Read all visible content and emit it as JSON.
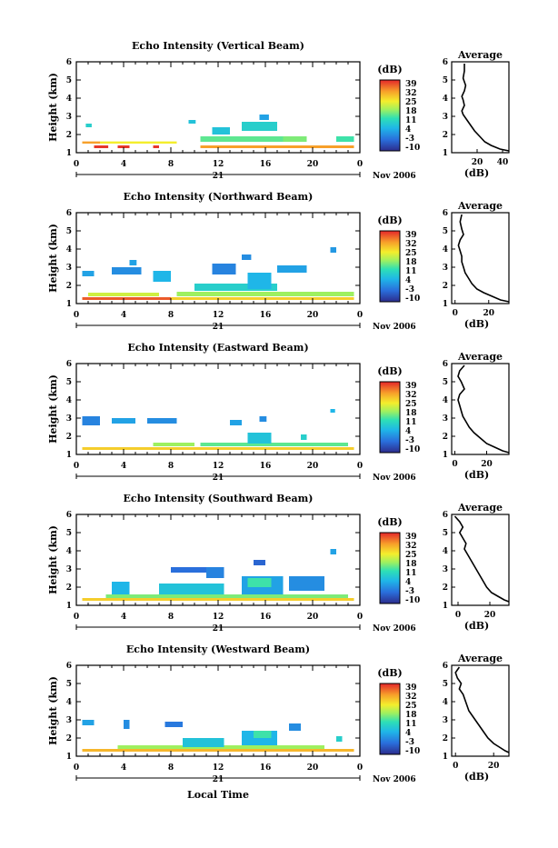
{
  "figure": {
    "xlabel": "Local Time"
  },
  "chart_data": [
    {
      "type": "heatmap",
      "title": "Echo Intensity (Vertical Beam)",
      "ylabel": "Height (km)",
      "xticks": [
        "0",
        "4",
        "8",
        "12",
        "16",
        "20",
        "0"
      ],
      "xlim": [
        0,
        24
      ],
      "date_label": "21",
      "date_suffix": "Nov 2006",
      "yticks": [
        "1",
        "2",
        "3",
        "4",
        "5",
        "6"
      ],
      "ylim": [
        1,
        6
      ],
      "colorbar": {
        "label": "(dB)",
        "ticks": [
          "39",
          "32",
          "25",
          "18",
          "11",
          "4",
          "-3",
          "-10"
        ]
      },
      "profile": {
        "title": "Average",
        "xlabel": "(dB)",
        "xticks": [
          "20",
          "40"
        ],
        "xlim": [
          0,
          45
        ],
        "x": [
          10,
          10,
          9,
          11,
          10,
          8,
          9,
          10,
          8,
          9,
          12,
          15,
          18,
          22,
          26,
          31,
          38,
          45
        ],
        "y": [
          5.9,
          5.5,
          5.1,
          4.7,
          4.4,
          4.1,
          3.9,
          3.6,
          3.3,
          3.1,
          2.8,
          2.5,
          2.2,
          1.9,
          1.6,
          1.4,
          1.2,
          1.1
        ]
      },
      "heat_cells": [
        {
          "x": 0.5,
          "y": 1.5,
          "w": 1.5,
          "h": 0.12,
          "v": 32
        },
        {
          "x": 2.0,
          "y": 1.5,
          "w": 6.5,
          "h": 0.12,
          "v": 25
        },
        {
          "x": 1.5,
          "y": 1.25,
          "w": 1.2,
          "h": 0.15,
          "v": 38
        },
        {
          "x": 3.5,
          "y": 1.25,
          "w": 1.0,
          "h": 0.15,
          "v": 38
        },
        {
          "x": 6.5,
          "y": 1.25,
          "w": 0.5,
          "h": 0.15,
          "v": 38
        },
        {
          "x": 10.5,
          "y": 1.25,
          "w": 13.0,
          "h": 0.15,
          "v": 32
        },
        {
          "x": 10.5,
          "y": 1.6,
          "w": 8.5,
          "h": 0.3,
          "v": 14
        },
        {
          "x": 11.5,
          "y": 2.0,
          "w": 1.5,
          "h": 0.4,
          "v": 6
        },
        {
          "x": 14.0,
          "y": 2.2,
          "w": 3.0,
          "h": 0.5,
          "v": 8
        },
        {
          "x": 15.5,
          "y": 2.8,
          "w": 0.8,
          "h": 0.3,
          "v": 2
        },
        {
          "x": 17.5,
          "y": 1.6,
          "w": 2.0,
          "h": 0.3,
          "v": 16
        },
        {
          "x": 22.0,
          "y": 1.6,
          "w": 1.5,
          "h": 0.3,
          "v": 12
        },
        {
          "x": 0.8,
          "y": 2.4,
          "w": 0.5,
          "h": 0.2,
          "v": 8
        },
        {
          "x": 9.5,
          "y": 2.6,
          "w": 0.6,
          "h": 0.2,
          "v": 6
        }
      ]
    },
    {
      "type": "heatmap",
      "title": "Echo Intensity (Northward Beam)",
      "ylabel": "Height (km)",
      "xticks": [
        "0",
        "4",
        "8",
        "12",
        "16",
        "20",
        "0"
      ],
      "xlim": [
        0,
        24
      ],
      "date_label": "21",
      "date_suffix": "Nov 2006",
      "yticks": [
        "1",
        "2",
        "3",
        "4",
        "5",
        "6"
      ],
      "ylim": [
        1,
        6
      ],
      "colorbar": {
        "label": "(dB)",
        "ticks": [
          "39",
          "32",
          "25",
          "18",
          "11",
          "4",
          "-3",
          "-10"
        ]
      },
      "profile": {
        "title": "Average",
        "xlabel": "(dB)",
        "xticks": [
          "0",
          "20"
        ],
        "xlim": [
          -2,
          32
        ],
        "x": [
          4,
          3,
          4,
          5,
          3,
          2,
          3,
          4,
          4,
          5,
          6,
          8,
          10,
          13,
          17,
          22,
          27,
          32
        ],
        "y": [
          5.9,
          5.5,
          5.1,
          4.8,
          4.5,
          4.2,
          3.9,
          3.6,
          3.3,
          3.0,
          2.7,
          2.4,
          2.1,
          1.8,
          1.6,
          1.4,
          1.2,
          1.1
        ]
      },
      "heat_cells": [
        {
          "x": 0.5,
          "y": 1.2,
          "w": 7.5,
          "h": 0.15,
          "v": 36
        },
        {
          "x": 8.0,
          "y": 1.2,
          "w": 15.5,
          "h": 0.15,
          "v": 28
        },
        {
          "x": 1.0,
          "y": 1.4,
          "w": 6.0,
          "h": 0.2,
          "v": 22
        },
        {
          "x": 8.5,
          "y": 1.4,
          "w": 15.0,
          "h": 0.25,
          "v": 18
        },
        {
          "x": 10.0,
          "y": 1.7,
          "w": 7.0,
          "h": 0.4,
          "v": 8
        },
        {
          "x": 14.5,
          "y": 1.8,
          "w": 2.0,
          "h": 0.9,
          "v": 4
        },
        {
          "x": 0.5,
          "y": 2.5,
          "w": 1.0,
          "h": 0.3,
          "v": 2
        },
        {
          "x": 3.0,
          "y": 2.6,
          "w": 2.5,
          "h": 0.4,
          "v": 0
        },
        {
          "x": 6.5,
          "y": 2.2,
          "w": 1.5,
          "h": 0.6,
          "v": 4
        },
        {
          "x": 11.5,
          "y": 2.6,
          "w": 2.0,
          "h": 0.6,
          "v": -1
        },
        {
          "x": 17.0,
          "y": 2.7,
          "w": 2.5,
          "h": 0.4,
          "v": 2
        },
        {
          "x": 21.5,
          "y": 3.8,
          "w": 0.5,
          "h": 0.3,
          "v": 1
        },
        {
          "x": 4.5,
          "y": 3.1,
          "w": 0.6,
          "h": 0.3,
          "v": 2
        },
        {
          "x": 14.0,
          "y": 3.4,
          "w": 0.8,
          "h": 0.3,
          "v": 0
        }
      ]
    },
    {
      "type": "heatmap",
      "title": "Echo Intensity (Eastward Beam)",
      "ylabel": "Height (km)",
      "xticks": [
        "0",
        "4",
        "8",
        "12",
        "16",
        "20",
        "0"
      ],
      "xlim": [
        0,
        24
      ],
      "date_label": "21",
      "date_suffix": "Nov 2006",
      "yticks": [
        "1",
        "2",
        "3",
        "4",
        "5",
        "6"
      ],
      "ylim": [
        1,
        6
      ],
      "colorbar": {
        "label": "(dB)",
        "ticks": [
          "39",
          "32",
          "25",
          "18",
          "11",
          "4",
          "-3",
          "-10"
        ]
      },
      "profile": {
        "title": "Average",
        "xlabel": "(dB)",
        "xticks": [
          "0",
          "20"
        ],
        "xlim": [
          -2,
          34
        ],
        "x": [
          6,
          3,
          2,
          4,
          6,
          3,
          2,
          3,
          4,
          5,
          7,
          9,
          12,
          16,
          20,
          25,
          30,
          34
        ],
        "y": [
          5.9,
          5.6,
          5.3,
          5.0,
          4.6,
          4.3,
          4.0,
          3.7,
          3.4,
          3.1,
          2.8,
          2.5,
          2.2,
          1.9,
          1.6,
          1.4,
          1.2,
          1.1
        ]
      },
      "heat_cells": [
        {
          "x": 0.5,
          "y": 1.25,
          "w": 23.0,
          "h": 0.15,
          "v": 28
        },
        {
          "x": 6.5,
          "y": 1.45,
          "w": 3.5,
          "h": 0.2,
          "v": 18
        },
        {
          "x": 10.5,
          "y": 1.45,
          "w": 12.5,
          "h": 0.2,
          "v": 14
        },
        {
          "x": 14.5,
          "y": 1.6,
          "w": 2.0,
          "h": 0.6,
          "v": 6
        },
        {
          "x": 0.5,
          "y": 2.6,
          "w": 1.5,
          "h": 0.5,
          "v": -1
        },
        {
          "x": 3.0,
          "y": 2.7,
          "w": 2.0,
          "h": 0.3,
          "v": 2
        },
        {
          "x": 6.0,
          "y": 2.7,
          "w": 2.5,
          "h": 0.3,
          "v": 0
        },
        {
          "x": 13.0,
          "y": 2.6,
          "w": 1.0,
          "h": 0.3,
          "v": 2
        },
        {
          "x": 15.5,
          "y": 2.8,
          "w": 0.6,
          "h": 0.3,
          "v": 0
        },
        {
          "x": 21.5,
          "y": 3.3,
          "w": 0.4,
          "h": 0.2,
          "v": 4
        },
        {
          "x": 19.0,
          "y": 1.8,
          "w": 0.5,
          "h": 0.3,
          "v": 8
        }
      ]
    },
    {
      "type": "heatmap",
      "title": "Echo Intensity (Southward Beam)",
      "ylabel": "Height (km)",
      "xticks": [
        "0",
        "4",
        "8",
        "12",
        "16",
        "20",
        "0"
      ],
      "xlim": [
        0,
        24
      ],
      "date_label": "21",
      "date_suffix": "Nov 2006",
      "yticks": [
        "1",
        "2",
        "3",
        "4",
        "5",
        "6"
      ],
      "ylim": [
        1,
        6
      ],
      "colorbar": {
        "label": "(dB)",
        "ticks": [
          "39",
          "32",
          "25",
          "18",
          "11",
          "4",
          "-3",
          "-10"
        ]
      },
      "profile": {
        "title": "Average",
        "xlabel": "(dB)",
        "xticks": [
          "0",
          "20"
        ],
        "xlim": [
          -4,
          32
        ],
        "x": [
          -2,
          1,
          3,
          1,
          3,
          5,
          4,
          6,
          8,
          10,
          12,
          14,
          16,
          18,
          21,
          25,
          29,
          32
        ],
        "y": [
          5.9,
          5.6,
          5.3,
          5.0,
          4.7,
          4.4,
          4.1,
          3.8,
          3.5,
          3.2,
          2.9,
          2.6,
          2.3,
          2.0,
          1.7,
          1.5,
          1.3,
          1.2
        ]
      },
      "heat_cells": [
        {
          "x": 0.5,
          "y": 1.25,
          "w": 23.0,
          "h": 0.15,
          "v": 28
        },
        {
          "x": 2.5,
          "y": 1.4,
          "w": 20.5,
          "h": 0.2,
          "v": 16
        },
        {
          "x": 7.0,
          "y": 1.6,
          "w": 5.5,
          "h": 0.6,
          "v": 6
        },
        {
          "x": 14.0,
          "y": 1.6,
          "w": 3.5,
          "h": 1.0,
          "v": 2
        },
        {
          "x": 14.5,
          "y": 2.0,
          "w": 2.0,
          "h": 0.5,
          "v": 12
        },
        {
          "x": 3.0,
          "y": 1.6,
          "w": 1.5,
          "h": 0.7,
          "v": 4
        },
        {
          "x": 8.0,
          "y": 2.8,
          "w": 3.0,
          "h": 0.3,
          "v": -3
        },
        {
          "x": 11.0,
          "y": 2.5,
          "w": 1.5,
          "h": 0.6,
          "v": -1
        },
        {
          "x": 18.0,
          "y": 1.8,
          "w": 3.0,
          "h": 0.8,
          "v": 0
        },
        {
          "x": 15.0,
          "y": 3.2,
          "w": 1.0,
          "h": 0.3,
          "v": -4
        },
        {
          "x": 21.5,
          "y": 3.8,
          "w": 0.5,
          "h": 0.3,
          "v": 2
        }
      ]
    },
    {
      "type": "heatmap",
      "title": "Echo Intensity (Westward Beam)",
      "ylabel": "Height (km)",
      "xticks": [
        "0",
        "4",
        "8",
        "12",
        "16",
        "20",
        "0"
      ],
      "xlim": [
        0,
        24
      ],
      "date_label": "21",
      "date_suffix": "Nov 2006",
      "yticks": [
        "1",
        "2",
        "3",
        "4",
        "5",
        "6"
      ],
      "ylim": [
        1,
        6
      ],
      "colorbar": {
        "label": "(dB)",
        "ticks": [
          "39",
          "32",
          "25",
          "18",
          "11",
          "4",
          "-3",
          "-10"
        ]
      },
      "profile": {
        "title": "Average",
        "xlabel": "(dB)",
        "xticks": [
          "0",
          "20"
        ],
        "xlim": [
          -2,
          28
        ],
        "x": [
          2,
          0,
          1,
          3,
          2,
          4,
          5,
          6,
          7,
          9,
          11,
          13,
          15,
          17,
          20,
          23,
          26,
          28
        ],
        "y": [
          5.9,
          5.6,
          5.3,
          5.0,
          4.7,
          4.4,
          4.1,
          3.8,
          3.5,
          3.2,
          2.9,
          2.6,
          2.3,
          2.0,
          1.7,
          1.5,
          1.3,
          1.2
        ]
      },
      "heat_cells": [
        {
          "x": 0.5,
          "y": 1.25,
          "w": 23.0,
          "h": 0.15,
          "v": 30
        },
        {
          "x": 3.5,
          "y": 1.4,
          "w": 17.5,
          "h": 0.2,
          "v": 18
        },
        {
          "x": 9.0,
          "y": 1.5,
          "w": 3.5,
          "h": 0.5,
          "v": 6
        },
        {
          "x": 14.0,
          "y": 1.6,
          "w": 3.0,
          "h": 0.8,
          "v": 4
        },
        {
          "x": 15.0,
          "y": 2.0,
          "w": 1.5,
          "h": 0.4,
          "v": 12
        },
        {
          "x": 0.5,
          "y": 2.7,
          "w": 1.0,
          "h": 0.3,
          "v": 2
        },
        {
          "x": 4.0,
          "y": 2.5,
          "w": 0.5,
          "h": 0.5,
          "v": 0
        },
        {
          "x": 7.5,
          "y": 2.6,
          "w": 1.5,
          "h": 0.3,
          "v": -2
        },
        {
          "x": 18.0,
          "y": 2.4,
          "w": 1.0,
          "h": 0.4,
          "v": 0
        },
        {
          "x": 22.0,
          "y": 1.8,
          "w": 0.5,
          "h": 0.3,
          "v": 8
        }
      ]
    }
  ]
}
